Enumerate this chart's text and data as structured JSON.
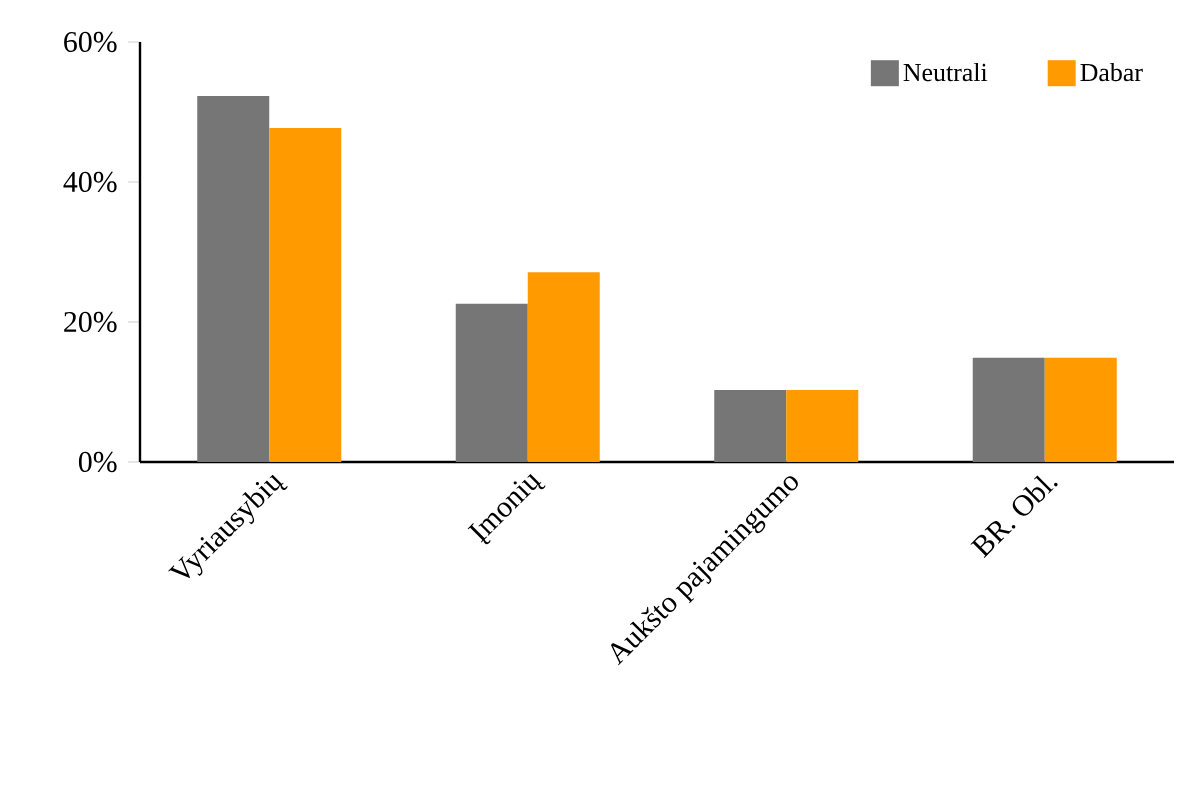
{
  "chart_data": {
    "type": "bar",
    "categories": [
      "Vyriausybių",
      "Įmonių",
      "Aukšto pajamingumo",
      "BR. Obl."
    ],
    "series": [
      {
        "name": "Neutrali",
        "color": "#767676",
        "values": [
          52.3,
          22.6,
          10.3,
          14.9
        ]
      },
      {
        "name": "Dabar",
        "color": "#ff9a00",
        "values": [
          47.7,
          27.1,
          10.3,
          14.9
        ]
      }
    ],
    "ylim": [
      0,
      60
    ],
    "yticks": [
      {
        "value": 0,
        "label": "0%"
      },
      {
        "value": 20,
        "label": "20%"
      },
      {
        "value": 40,
        "label": "40%"
      },
      {
        "value": 60,
        "label": "60%"
      }
    ],
    "grid": false,
    "legend": "top right"
  }
}
